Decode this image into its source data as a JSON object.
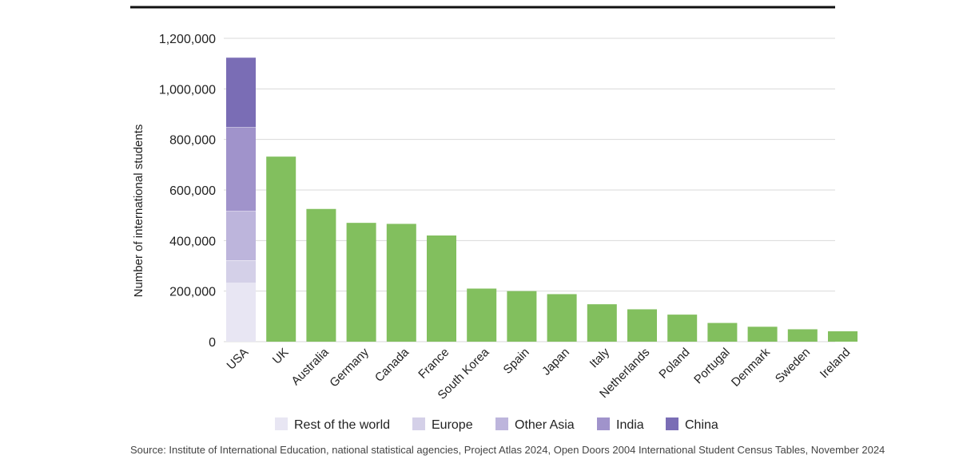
{
  "chart_data": {
    "type": "bar",
    "categories": [
      "USA",
      "UK",
      "Australia",
      "Germany",
      "Canada",
      "France",
      "South Korea",
      "Spain",
      "Japan",
      "Italy",
      "Netherlands",
      "Poland",
      "Portugal",
      "Denmark",
      "Sweden",
      "Ireland"
    ],
    "ylabel": "Number of international students",
    "ylim": [
      0,
      1200000
    ],
    "yticks": [
      0,
      200000,
      400000,
      600000,
      800000,
      1000000,
      1200000
    ],
    "ytick_labels": [
      "0",
      "200,000",
      "400,000",
      "600,000",
      "800,000",
      "1,000,000",
      "1,200,000"
    ],
    "grid": true,
    "legend_position": "bottom",
    "usa_stack": [
      {
        "name": "Rest of the world",
        "value": 232000,
        "color": "#e8e6f3"
      },
      {
        "name": "Europe",
        "value": 90000,
        "color": "#d4d0e8"
      },
      {
        "name": "Other Asia",
        "value": 195000,
        "color": "#bdb5dc"
      },
      {
        "name": "India",
        "value": 331000,
        "color": "#a093cb"
      },
      {
        "name": "China",
        "value": 277000,
        "color": "#7a6db5"
      }
    ],
    "others": {
      "color": "#82bf5e",
      "values": [
        null,
        732000,
        525000,
        470000,
        466000,
        420000,
        210000,
        200000,
        188000,
        148000,
        128000,
        107000,
        74000,
        59000,
        49000,
        41000
      ]
    }
  },
  "source": "Source: Institute of International Education, national statistical agencies, Project Atlas 2024, Open Doors 2004 International Student Census Tables, November 2024"
}
